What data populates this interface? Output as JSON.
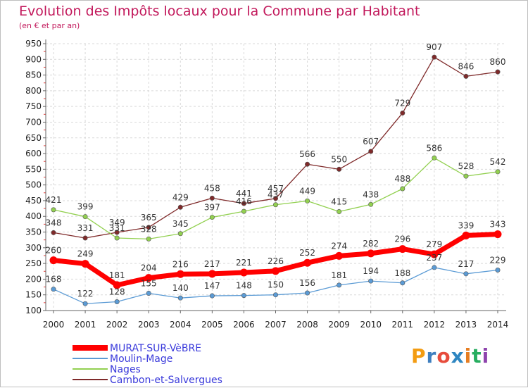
{
  "title": "Evolution des Impôts locaux pour la Commune par Habitant",
  "subtitle": "(en € et par an)",
  "logo": "Proxiti",
  "chart_data": {
    "type": "line",
    "x": [
      2000,
      2001,
      2002,
      2003,
      2004,
      2005,
      2006,
      2007,
      2008,
      2009,
      2010,
      2011,
      2012,
      2013,
      2014
    ],
    "ylim": [
      100,
      950
    ],
    "yticks": [
      100,
      150,
      200,
      250,
      300,
      350,
      400,
      450,
      500,
      550,
      600,
      650,
      700,
      750,
      800,
      850,
      900,
      950
    ],
    "grid": true,
    "legend_position": "bottom-left",
    "series": [
      {
        "name": "MURAT-SUR-VèBRE",
        "color": "#ff0000",
        "values": [
          260,
          249,
          181,
          204,
          216,
          217,
          221,
          226,
          252,
          274,
          282,
          296,
          279,
          339,
          343
        ]
      },
      {
        "name": "Moulin-Mage",
        "color": "#5b9bd5",
        "values": [
          168,
          122,
          128,
          155,
          140,
          147,
          148,
          150,
          156,
          181,
          194,
          188,
          237,
          217,
          229
        ]
      },
      {
        "name": "Nages",
        "color": "#92d050",
        "values": [
          421,
          399,
          331,
          328,
          345,
          397,
          416,
          437,
          449,
          415,
          438,
          488,
          586,
          528,
          542
        ]
      },
      {
        "name": "Cambon-et-Salvergues",
        "color": "#7f2a2a",
        "values": [
          348,
          331,
          349,
          365,
          429,
          458,
          441,
          457,
          566,
          550,
          607,
          729,
          907,
          846,
          860
        ]
      }
    ]
  }
}
